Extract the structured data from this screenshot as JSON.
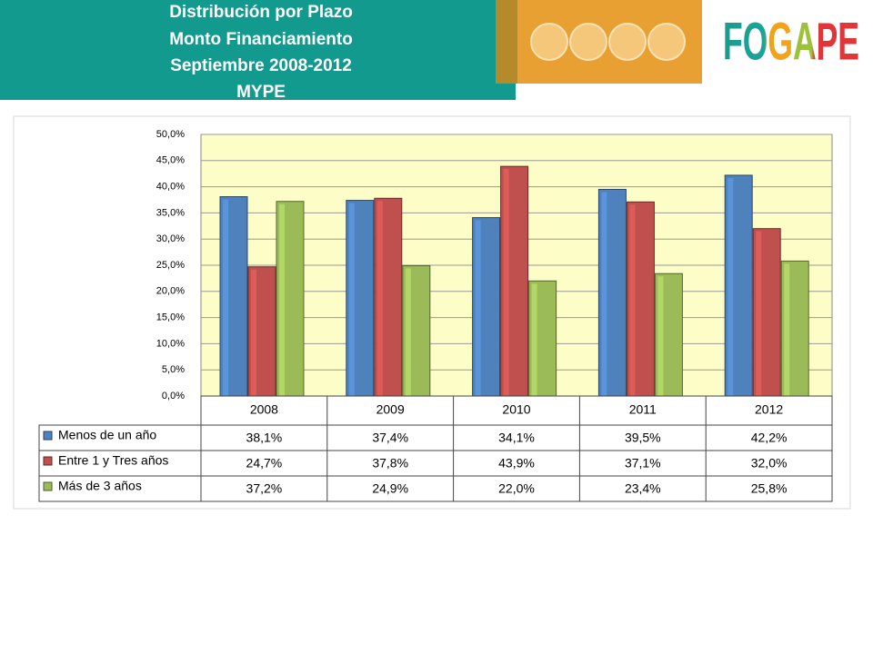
{
  "header": {
    "logo": "FOGAPE"
  },
  "chart_data": {
    "type": "bar",
    "title": [
      "Distribución por  Plazo",
      "Monto Financiamiento",
      "Septiembre  2008-2012",
      "MYPE"
    ],
    "categories": [
      "2008",
      "2009",
      "2010",
      "2011",
      "2012"
    ],
    "series": [
      {
        "name": "Menos de un año",
        "color": "#4f81bd",
        "values": [
          38.1,
          37.4,
          34.1,
          39.5,
          42.2
        ],
        "value_labels": [
          "38,1%",
          "37,4%",
          "34,1%",
          "39,5%",
          "42,2%"
        ]
      },
      {
        "name": "Entre 1 y Tres años",
        "color": "#c0504d",
        "values": [
          24.7,
          37.8,
          43.9,
          37.1,
          32.0
        ],
        "value_labels": [
          "24,7%",
          "37,8%",
          "43,9%",
          "37,1%",
          "32,0%"
        ]
      },
      {
        "name": "Más de 3 años",
        "color": "#9bbb59",
        "values": [
          37.2,
          24.9,
          22.0,
          23.4,
          25.8
        ],
        "value_labels": [
          "37,2%",
          "24,9%",
          "22,0%",
          "23,4%",
          "25,8%"
        ]
      }
    ],
    "ylim": [
      0,
      50
    ],
    "yticks": [
      {
        "value": 0,
        "label": "0,0%"
      },
      {
        "value": 5,
        "label": "5,0%"
      },
      {
        "value": 10,
        "label": "10,0%"
      },
      {
        "value": 15,
        "label": "15,0%"
      },
      {
        "value": 20,
        "label": "20,0%"
      },
      {
        "value": 25,
        "label": "25,0%"
      },
      {
        "value": 30,
        "label": "30,0%"
      },
      {
        "value": 35,
        "label": "35,0%"
      },
      {
        "value": 40,
        "label": "40,0%"
      },
      {
        "value": 45,
        "label": "45,0%"
      },
      {
        "value": 50,
        "label": "50,0%"
      }
    ],
    "grid": true
  }
}
